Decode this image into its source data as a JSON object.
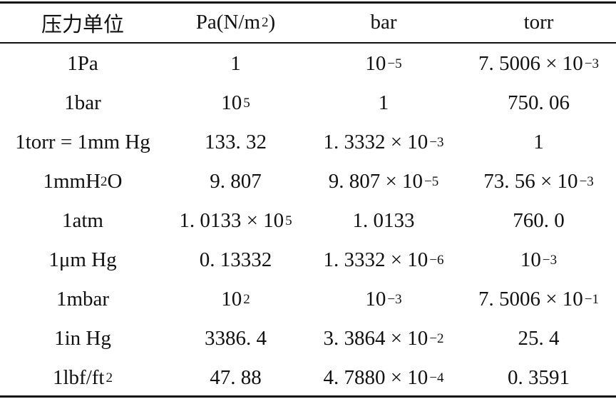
{
  "table": {
    "header": [
      "压力单位",
      {
        "base": "Pa(N/m",
        "sup": "2",
        "rest": ")"
      },
      "bar",
      "torr"
    ],
    "rows": [
      [
        "1Pa",
        "1",
        {
          "base": "10",
          "sup": "−5"
        },
        {
          "base": "7. 5006 × 10",
          "sup": "−3"
        }
      ],
      [
        "1bar",
        {
          "base": "10",
          "sup": "5"
        },
        "1",
        "750. 06"
      ],
      [
        "1torr = 1mm Hg",
        "133. 32",
        {
          "base": "1. 3332 × 10",
          "sup": "−3"
        },
        "1"
      ],
      [
        {
          "base": "1mmH",
          "sub": "2",
          "rest": "O"
        },
        "9. 807",
        {
          "base": "9. 807 × 10",
          "sup": "−5"
        },
        {
          "base": "73. 56 × 10",
          "sup": "−3"
        }
      ],
      [
        "1atm",
        {
          "base": "1. 0133 × 10",
          "sup": "5"
        },
        "1. 0133",
        "760. 0"
      ],
      [
        "1μm Hg",
        "0. 13332",
        {
          "base": "1. 3332 × 10",
          "sup": "−6"
        },
        {
          "base": "10",
          "sup": "−3"
        }
      ],
      [
        "1mbar",
        {
          "base": "10",
          "sup": "2"
        },
        {
          "base": "10",
          "sup": "−3"
        },
        {
          "base": "7. 5006 × 10",
          "sup": "−1"
        }
      ],
      [
        "1in Hg",
        "3386. 4",
        {
          "base": "3. 3864 × 10",
          "sup": "−2"
        },
        "25. 4"
      ],
      [
        {
          "base": "1lbf/ft",
          "sup": "2"
        },
        "47. 88",
        {
          "base": "4. 7880 × 10",
          "sup": "−4"
        },
        "0. 3591"
      ]
    ]
  }
}
